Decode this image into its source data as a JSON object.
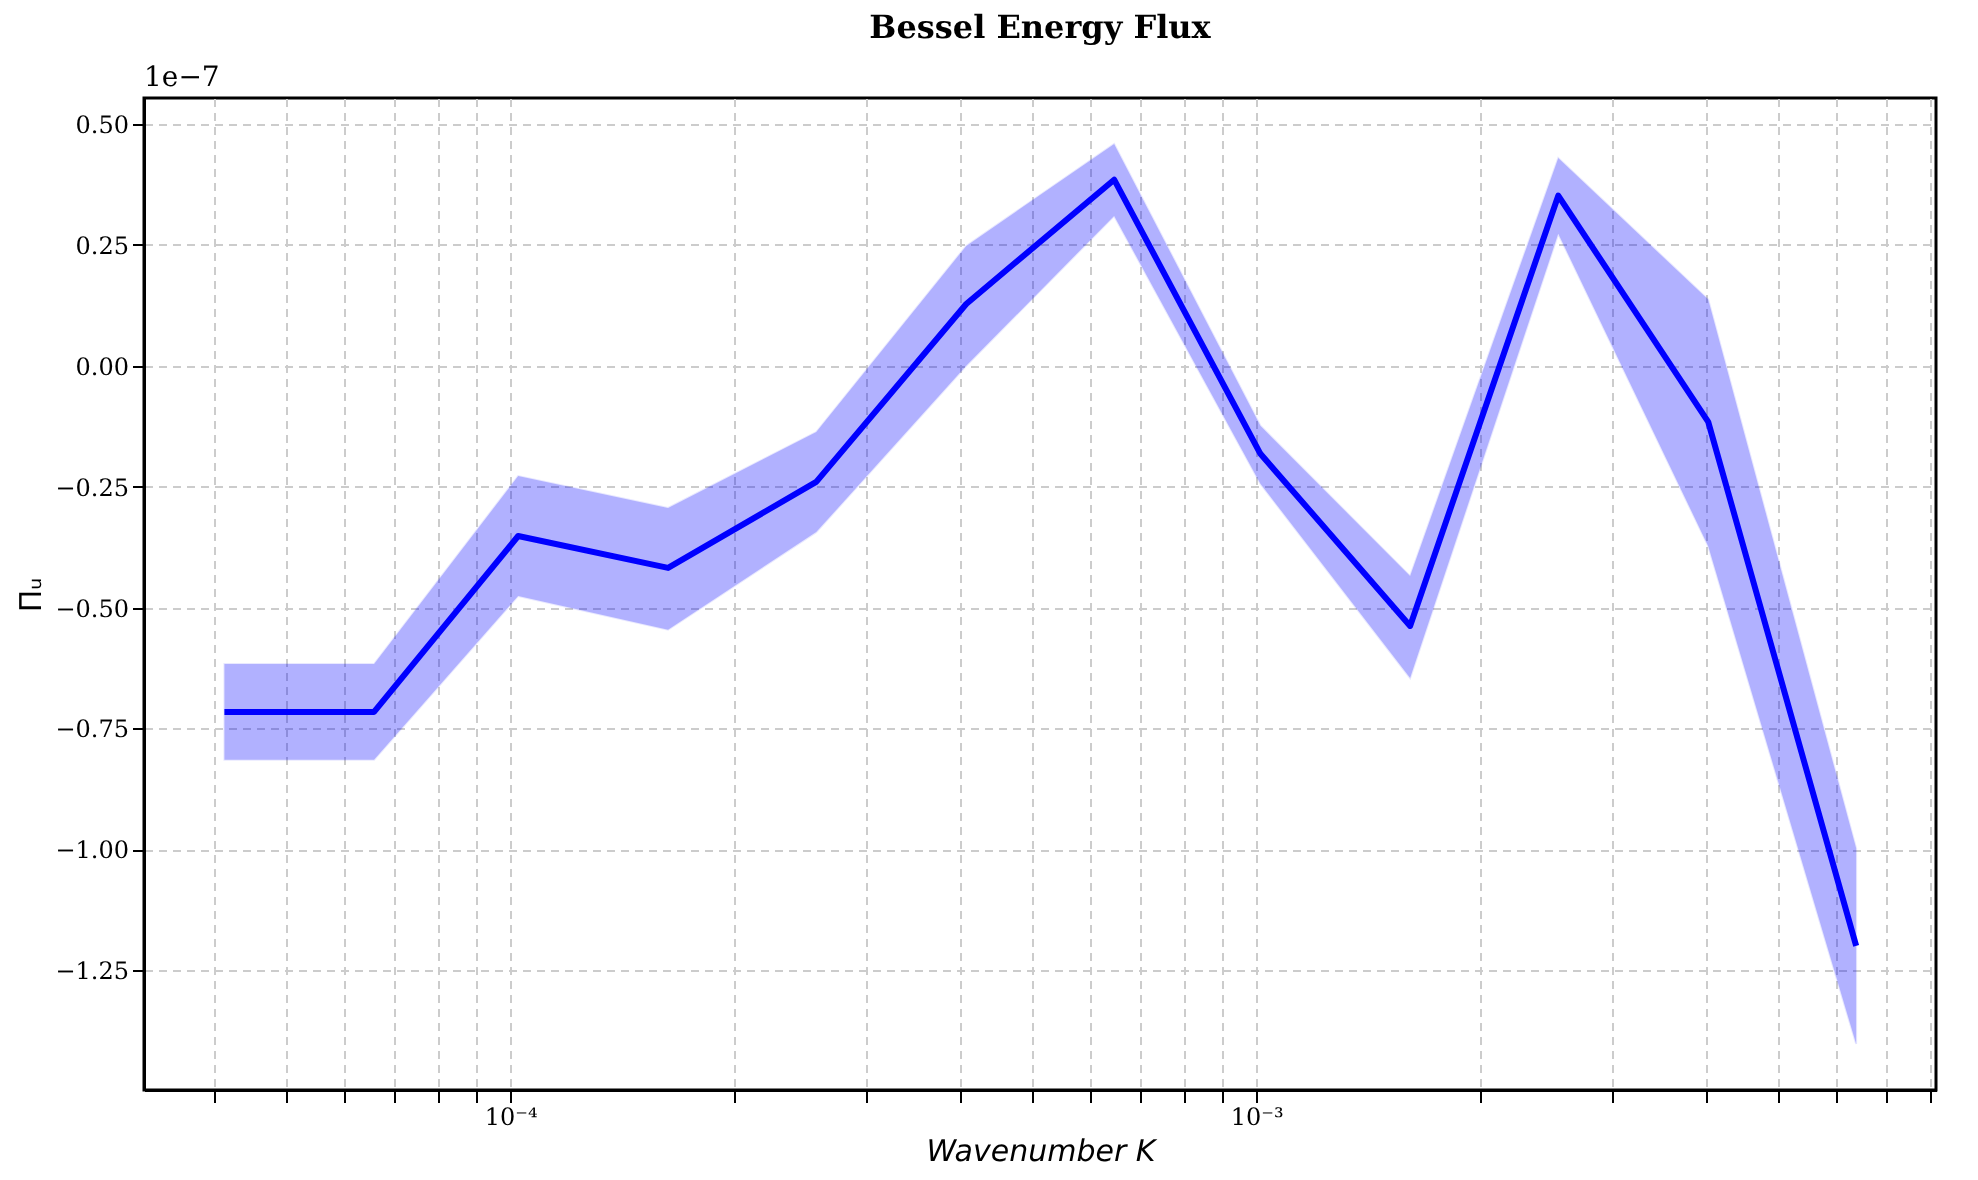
{
  "chart_data": {
    "type": "line",
    "title": "Bessel Energy Flux",
    "xlabel": "Wavenumber K",
    "ylabel": "Πᵤ",
    "annotations": [
      "1e−7"
    ],
    "x": [
      4.14e-05,
      6.57e-05,
      0.0001025,
      0.0001628,
      0.0002572,
      0.0004086,
      0.000645,
      0.001013,
      0.001608,
      0.00254,
      0.004035,
      0.00637
    ],
    "series": [
      {
        "color": "#0000ff",
        "values": [
          -0.716,
          -0.716,
          -0.352,
          -0.418,
          -0.24,
          0.128,
          0.385,
          -0.182,
          -0.538,
          0.352,
          -0.116,
          -1.2
        ],
        "lower": [
          -0.815,
          -0.815,
          -0.476,
          -0.546,
          -0.344,
          0.0,
          0.31,
          -0.244,
          -0.646,
          0.273,
          -0.373,
          -1.403
        ],
        "upper": [
          -0.617,
          -0.617,
          -0.228,
          -0.294,
          -0.137,
          0.248,
          0.459,
          -0.124,
          -0.435,
          0.43,
          0.137,
          -0.998
        ]
      }
    ],
    "log": "x",
    "xlim": [
      3.23e-05,
      0.00815
    ],
    "xticks": [
      {
        "value": 4e-05,
        "label": null
      },
      {
        "value": 5e-05,
        "label": null
      },
      {
        "value": 6e-05,
        "label": null
      },
      {
        "value": 7e-05,
        "label": null
      },
      {
        "value": 8e-05,
        "label": null
      },
      {
        "value": 9e-05,
        "label": null
      },
      {
        "value": 0.0001,
        "label": "10⁻⁴"
      },
      {
        "value": 0.0002,
        "label": null
      },
      {
        "value": 0.0003,
        "label": null
      },
      {
        "value": 0.0004,
        "label": null
      },
      {
        "value": 0.0005,
        "label": null
      },
      {
        "value": 0.0006,
        "label": null
      },
      {
        "value": 0.0007,
        "label": null
      },
      {
        "value": 0.0008,
        "label": null
      },
      {
        "value": 0.0009,
        "label": null
      },
      {
        "value": 0.001,
        "label": "10⁻³"
      },
      {
        "value": 0.002,
        "label": null
      },
      {
        "value": 0.003,
        "label": null
      },
      {
        "value": 0.004,
        "label": null
      },
      {
        "value": 0.005,
        "label": null
      },
      {
        "value": 0.006,
        "label": null
      },
      {
        "value": 0.007,
        "label": null
      },
      {
        "value": 0.008,
        "label": null
      }
    ],
    "ylim": [
      -1.498,
      0.554
    ],
    "yticks": [
      {
        "value": -1.25,
        "label": "−1.25"
      },
      {
        "value": -1.0,
        "label": "−1.00"
      },
      {
        "value": -0.75,
        "label": "−0.75"
      },
      {
        "value": -0.5,
        "label": "−0.50"
      },
      {
        "value": -0.25,
        "label": "−0.25"
      },
      {
        "value": 0,
        "label": "0.00"
      },
      {
        "value": 0.25,
        "label": "0.25"
      },
      {
        "value": 0.5,
        "label": "0.50"
      }
    ],
    "grid": true,
    "line_style": "solid",
    "marker": "none"
  }
}
